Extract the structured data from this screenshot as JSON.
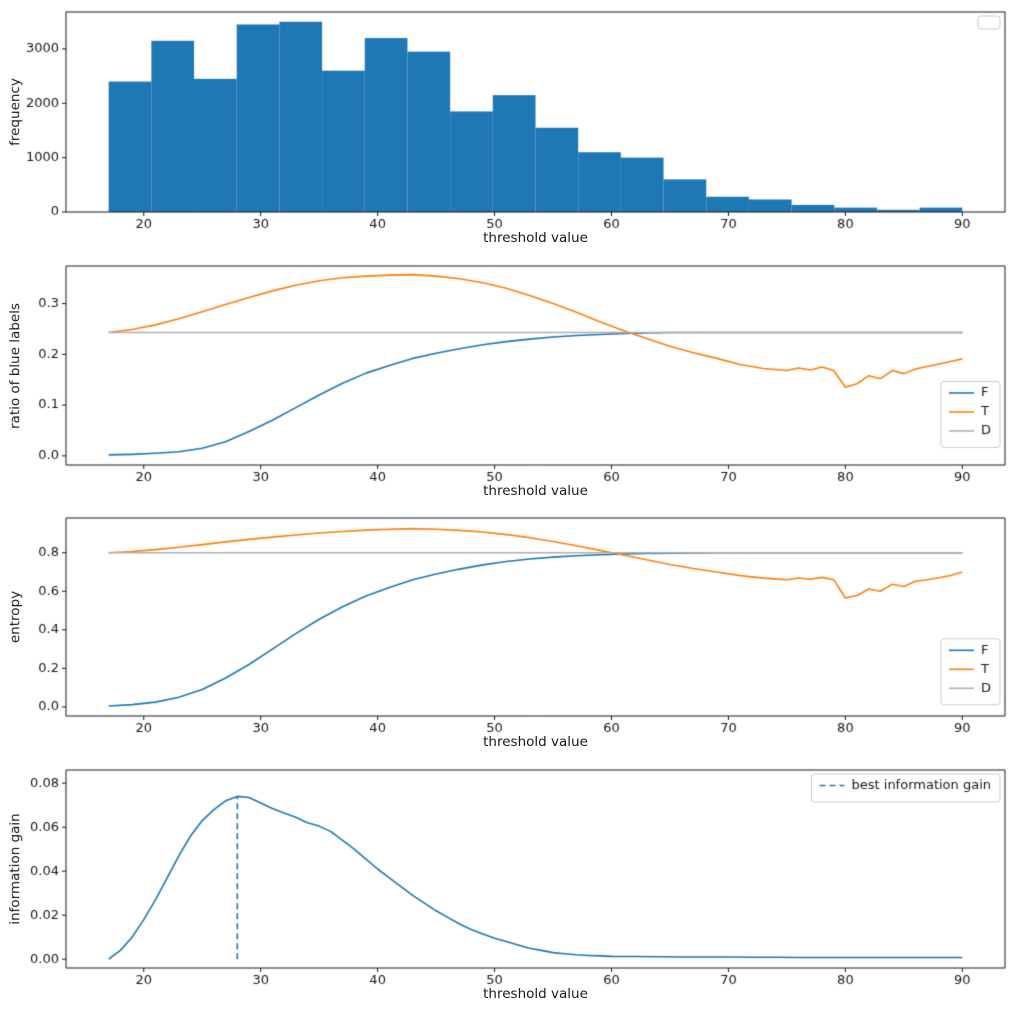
{
  "figure": {
    "background": "#ffffff"
  },
  "chart_data": [
    {
      "type": "histogram",
      "xlabel": "threshold value",
      "ylabel": "frequency",
      "xlim": [
        13.35,
        93.65
      ],
      "ylim": [
        0,
        3680
      ],
      "xticks": {
        "values": [
          20,
          30,
          40,
          50,
          60,
          70,
          80,
          90
        ],
        "labels": [
          "20",
          "30",
          "40",
          "50",
          "60",
          "70",
          "80",
          "90"
        ]
      },
      "yticks": {
        "values": [
          0,
          1000,
          2000,
          3000
        ],
        "labels": [
          "0",
          "1000",
          "2000",
          "3000"
        ]
      },
      "bar_color": "#1f77b4",
      "bin_start": 17,
      "bin_width": 3.65,
      "values": [
        2400,
        3150,
        2450,
        3450,
        3500,
        2600,
        3200,
        2950,
        1850,
        2150,
        1550,
        1100,
        1000,
        600,
        280,
        230,
        130,
        80,
        40,
        80
      ],
      "legend": {
        "empty": true,
        "anchor_fy": 0
      }
    },
    {
      "type": "line",
      "xlabel": "threshold value",
      "ylabel": "ratio of blue labels",
      "xlim": [
        13.35,
        93.65
      ],
      "ylim": [
        -0.018,
        0.374
      ],
      "xticks": {
        "values": [
          20,
          30,
          40,
          50,
          60,
          70,
          80,
          90
        ],
        "labels": [
          "20",
          "30",
          "40",
          "50",
          "60",
          "70",
          "80",
          "90"
        ]
      },
      "yticks": {
        "values": [
          0,
          0.1,
          0.2,
          0.3
        ],
        "labels": [
          "0.0",
          "0.1",
          "0.2",
          "0.3"
        ]
      },
      "x": [
        17,
        19,
        21,
        23,
        25,
        27,
        29,
        31,
        33,
        35,
        37,
        39,
        41,
        43,
        45,
        47,
        49,
        51,
        53,
        55,
        57,
        59,
        61,
        63,
        65,
        67,
        69,
        71,
        73,
        74,
        75,
        76,
        77,
        78,
        79,
        80,
        81,
        82,
        83,
        84,
        85,
        86,
        87,
        88,
        89,
        90
      ],
      "series": [
        {
          "name": "F",
          "color": "#1f77b4",
          "y": [
            0.002,
            0.003,
            0.005,
            0.008,
            0.015,
            0.028,
            0.048,
            0.07,
            0.095,
            0.12,
            0.143,
            0.163,
            0.178,
            0.192,
            0.202,
            0.211,
            0.219,
            0.225,
            0.23,
            0.234,
            0.237,
            0.239,
            0.241,
            0.242,
            0.243,
            0.243,
            0.243,
            0.243,
            0.243,
            0.243,
            0.243,
            0.243,
            0.243,
            0.243,
            0.243,
            0.243,
            0.243,
            0.243,
            0.243,
            0.243,
            0.243,
            0.243,
            0.243,
            0.243,
            0.243,
            0.243
          ]
        },
        {
          "name": "T",
          "color": "#ff7f0e",
          "y": [
            0.243,
            0.249,
            0.258,
            0.27,
            0.284,
            0.298,
            0.312,
            0.325,
            0.336,
            0.345,
            0.351,
            0.354,
            0.356,
            0.357,
            0.354,
            0.349,
            0.341,
            0.33,
            0.316,
            0.3,
            0.283,
            0.264,
            0.247,
            0.231,
            0.216,
            0.203,
            0.192,
            0.18,
            0.172,
            0.17,
            0.168,
            0.173,
            0.169,
            0.175,
            0.168,
            0.135,
            0.142,
            0.158,
            0.152,
            0.168,
            0.162,
            0.171,
            0.176,
            0.181,
            0.186,
            0.191
          ]
        },
        {
          "name": "D",
          "color": "#b0b0b0",
          "x": [
            17,
            90
          ],
          "y": [
            0.243,
            0.243
          ]
        }
      ],
      "legend": {
        "anchor_fy": 0.56,
        "items": [
          {
            "label": "F",
            "color": "#1f77b4"
          },
          {
            "label": "T",
            "color": "#ff7f0e"
          },
          {
            "label": "D",
            "color": "#b0b0b0"
          }
        ]
      }
    },
    {
      "type": "line",
      "xlabel": "threshold value",
      "ylabel": "entropy",
      "xlim": [
        13.35,
        93.65
      ],
      "ylim": [
        -0.047,
        0.98
      ],
      "xticks": {
        "values": [
          20,
          30,
          40,
          50,
          60,
          70,
          80,
          90
        ],
        "labels": [
          "20",
          "30",
          "40",
          "50",
          "60",
          "70",
          "80",
          "90"
        ]
      },
      "yticks": {
        "values": [
          0,
          0.2,
          0.4,
          0.6,
          0.8
        ],
        "labels": [
          "0.0",
          "0.2",
          "0.4",
          "0.6",
          "0.8"
        ]
      },
      "x": [
        17,
        19,
        21,
        23,
        25,
        27,
        29,
        31,
        33,
        35,
        37,
        39,
        41,
        43,
        45,
        47,
        49,
        51,
        53,
        55,
        57,
        59,
        61,
        63,
        65,
        67,
        69,
        71,
        73,
        74,
        75,
        76,
        77,
        78,
        79,
        80,
        81,
        82,
        83,
        84,
        85,
        86,
        87,
        88,
        89,
        90
      ],
      "series": [
        {
          "name": "F",
          "color": "#1f77b4",
          "y": [
            0.005,
            0.012,
            0.025,
            0.05,
            0.09,
            0.15,
            0.22,
            0.3,
            0.38,
            0.455,
            0.52,
            0.575,
            0.62,
            0.66,
            0.69,
            0.715,
            0.737,
            0.754,
            0.767,
            0.777,
            0.784,
            0.789,
            0.793,
            0.796,
            0.798,
            0.799,
            0.8,
            0.8,
            0.8,
            0.8,
            0.8,
            0.8,
            0.8,
            0.8,
            0.8,
            0.8,
            0.8,
            0.8,
            0.8,
            0.8,
            0.8,
            0.8,
            0.8,
            0.8,
            0.8,
            0.8
          ]
        },
        {
          "name": "T",
          "color": "#ff7f0e",
          "y": [
            0.8,
            0.806,
            0.816,
            0.828,
            0.842,
            0.856,
            0.869,
            0.881,
            0.892,
            0.902,
            0.91,
            0.917,
            0.922,
            0.925,
            0.922,
            0.916,
            0.907,
            0.894,
            0.878,
            0.858,
            0.836,
            0.812,
            0.788,
            0.763,
            0.739,
            0.718,
            0.7,
            0.681,
            0.668,
            0.664,
            0.66,
            0.669,
            0.662,
            0.672,
            0.66,
            0.565,
            0.578,
            0.612,
            0.6,
            0.636,
            0.625,
            0.652,
            0.66,
            0.67,
            0.682,
            0.7
          ]
        },
        {
          "name": "D",
          "color": "#b0b0b0",
          "x": [
            17,
            90
          ],
          "y": [
            0.8,
            0.8
          ]
        }
      ],
      "legend": {
        "anchor_fy": 0.59,
        "items": [
          {
            "label": "F",
            "color": "#1f77b4"
          },
          {
            "label": "T",
            "color": "#ff7f0e"
          },
          {
            "label": "D",
            "color": "#b0b0b0"
          }
        ]
      }
    },
    {
      "type": "line",
      "xlabel": "threshold value",
      "ylabel": "information gain",
      "xlim": [
        13.35,
        93.65
      ],
      "ylim": [
        -0.004,
        0.086
      ],
      "xticks": {
        "values": [
          20,
          30,
          40,
          50,
          60,
          70,
          80,
          90
        ],
        "labels": [
          "20",
          "30",
          "40",
          "50",
          "60",
          "70",
          "80",
          "90"
        ]
      },
      "yticks": {
        "values": [
          0,
          0.02,
          0.04,
          0.06,
          0.08
        ],
        "labels": [
          "0.00",
          "0.02",
          "0.04",
          "0.06",
          "0.08"
        ]
      },
      "x": [
        17,
        18,
        19,
        20,
        21,
        22,
        23,
        24,
        25,
        26,
        27,
        28,
        29,
        30,
        31,
        32,
        33,
        34,
        35,
        36,
        37,
        38,
        39,
        40,
        41,
        42,
        43,
        44,
        45,
        46,
        47,
        48,
        49,
        50,
        51,
        52,
        53,
        54,
        55,
        56,
        57,
        58,
        59,
        60,
        62,
        64,
        66,
        68,
        70,
        72,
        74,
        76,
        78,
        80,
        82,
        84,
        86,
        88,
        90
      ],
      "series": [
        {
          "name": "information gain",
          "color": "#1f77b4",
          "y": [
            0.0,
            0.004,
            0.01,
            0.018,
            0.027,
            0.037,
            0.047,
            0.056,
            0.063,
            0.068,
            0.072,
            0.074,
            0.0735,
            0.071,
            0.0685,
            0.0665,
            0.0645,
            0.062,
            0.0605,
            0.058,
            0.054,
            0.05,
            0.0455,
            0.041,
            0.037,
            0.033,
            0.029,
            0.0255,
            0.022,
            0.019,
            0.016,
            0.0135,
            0.0115,
            0.0095,
            0.008,
            0.0065,
            0.005,
            0.004,
            0.003,
            0.0025,
            0.002,
            0.0017,
            0.0015,
            0.0013,
            0.0012,
            0.0011,
            0.001,
            0.001,
            0.001,
            0.0009,
            0.0009,
            0.0008,
            0.0008,
            0.0008,
            0.0008,
            0.0008,
            0.0008,
            0.0008,
            0.0008
          ]
        }
      ],
      "vline": {
        "x": 28,
        "y0": 0,
        "y1": 0.074,
        "color": "#1f77b4",
        "dash": true,
        "label": "best information gain"
      },
      "legend": {
        "anchor_fy": 0,
        "items": [
          {
            "label": "best information gain",
            "color": "#1f77b4",
            "dash": true
          }
        ]
      }
    }
  ]
}
